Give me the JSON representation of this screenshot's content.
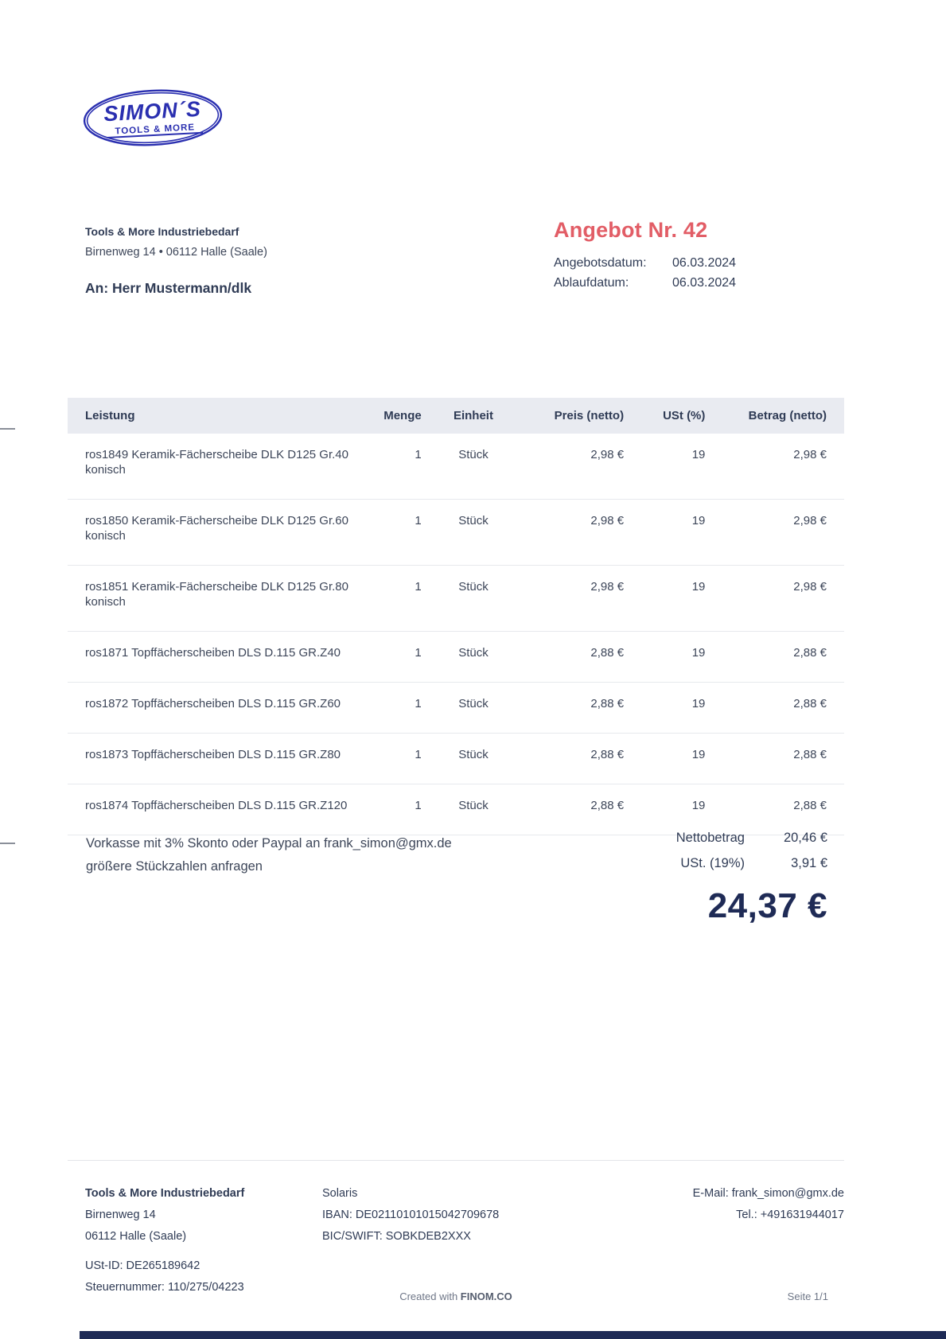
{
  "logo": {
    "name": "SIMON´S",
    "subtitle": "TOOLS & MORE",
    "color": "#2a2fb0"
  },
  "sender": {
    "company": "Tools & More Industriebedarf",
    "address_line": "Birnenweg 14 •  06112 Halle (Saale)",
    "recipient": "An: Herr Mustermann/dlk"
  },
  "offer": {
    "title": "Angebot Nr. 42",
    "accent_color": "#e25d66",
    "date_label": "Angebotsdatum:",
    "date_value": "06.03.2024",
    "expiry_label": "Ablaufdatum:",
    "expiry_value": "06.03.2024"
  },
  "table": {
    "headers": [
      "Leistung",
      "Menge",
      "Einheit",
      "Preis (netto)",
      "USt (%)",
      "Betrag (netto)"
    ],
    "items": [
      {
        "name": "ros1849 Keramik-Fächerscheibe DLK D125 Gr.40 konisch",
        "qty": "1",
        "unit": "Stück",
        "price": "2,98 €",
        "vat": "19",
        "amount": "2,98 €"
      },
      {
        "name": "ros1850 Keramik-Fächerscheibe DLK D125 Gr.60 konisch",
        "qty": "1",
        "unit": "Stück",
        "price": "2,98 €",
        "vat": "19",
        "amount": "2,98 €"
      },
      {
        "name": "ros1851 Keramik-Fächerscheibe DLK D125 Gr.80 konisch",
        "qty": "1",
        "unit": "Stück",
        "price": "2,98 €",
        "vat": "19",
        "amount": "2,98 €"
      },
      {
        "name": "ros1871 Topffächerscheiben DLS D.115 GR.Z40",
        "qty": "1",
        "unit": "Stück",
        "price": "2,88 €",
        "vat": "19",
        "amount": "2,88 €"
      },
      {
        "name": "ros1872 Topffächerscheiben DLS D.115 GR.Z60",
        "qty": "1",
        "unit": "Stück",
        "price": "2,88 €",
        "vat": "19",
        "amount": "2,88 €"
      },
      {
        "name": "ros1873 Topffächerscheiben DLS D.115 GR.Z80",
        "qty": "1",
        "unit": "Stück",
        "price": "2,88 €",
        "vat": "19",
        "amount": "2,88 €"
      },
      {
        "name": "ros1874 Topffächerscheiben DLS D.115 GR.Z120",
        "qty": "1",
        "unit": "Stück",
        "price": "2,88 €",
        "vat": "19",
        "amount": "2,88 €"
      }
    ]
  },
  "note": {
    "line1": "Vorkasse mit 3% Skonto oder Paypal an frank_simon@gmx.de",
    "line2": "größere Stückzahlen anfragen"
  },
  "totals": {
    "net_label": "Nettobetrag",
    "net_value": "20,46 €",
    "vat_label": "USt. (19%)",
    "vat_value": "3,91 €",
    "grand_total": "24,37 €"
  },
  "footer": {
    "company": "Tools & More Industriebedarf",
    "street": "Birnenweg 14",
    "city": "06112 Halle (Saale)",
    "vat_id": "USt-ID: DE265189642",
    "tax_number": "Steuernummer: 110/275/04223",
    "bank_name": "Solaris",
    "iban": "IBAN: DE02110101015042709678",
    "bic": "BIC/SWIFT: SOBKDEB2XXX",
    "email": "E-Mail: frank_simon@gmx.de",
    "phone": "Tel.: +491631944017"
  },
  "bottom": {
    "created_prefix": "Created with ",
    "created_brand": "FINOM.CO",
    "page_indicator": "Seite 1/1"
  }
}
